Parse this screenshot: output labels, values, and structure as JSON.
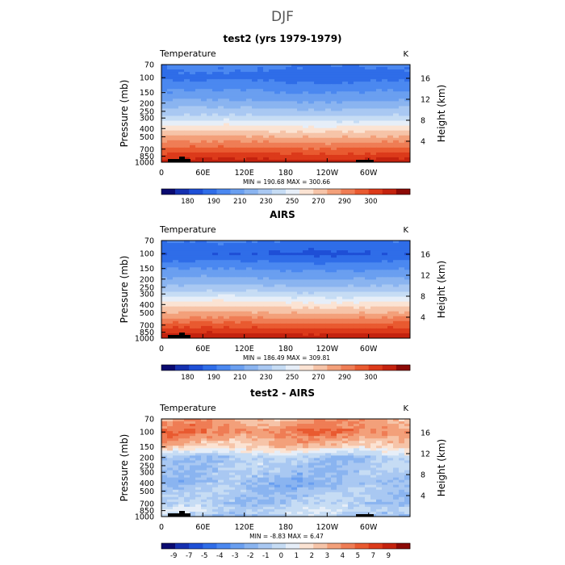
{
  "figure": {
    "title": "DJF"
  },
  "chart_data": [
    {
      "type": "heatmap",
      "title": "test2 (yrs 1979-1979)",
      "variable": "Temperature",
      "units": "K",
      "ylabel": "Pressure (mb)",
      "ylabel_right": "Height (km)",
      "x_ticks": [
        "0",
        "60E",
        "120E",
        "180",
        "120W",
        "60W"
      ],
      "x_tick_values": [
        0,
        60,
        120,
        180,
        240,
        300
      ],
      "xlim": [
        0,
        360
      ],
      "y_ticks": [
        "70",
        "100",
        "150",
        "200",
        "250",
        "300",
        "400",
        "500",
        "700",
        "850",
        "1000"
      ],
      "y_tick_values": [
        70,
        100,
        150,
        200,
        250,
        300,
        400,
        500,
        700,
        850,
        1000
      ],
      "ylim": [
        1000,
        70
      ],
      "y_scale": "log",
      "y2_ticks": [
        "4",
        "8",
        "12",
        "16"
      ],
      "y2_tick_values": [
        4,
        8,
        12,
        16
      ],
      "stats_text": "MIN = 190.68   MAX = 300.66",
      "min": 190.68,
      "max": 300.66,
      "colorbar": {
        "labels": [
          "180",
          "190",
          "210",
          "230",
          "250",
          "270",
          "290",
          "300"
        ],
        "colors": [
          "#0a0a70",
          "#1530b0",
          "#1e4fd6",
          "#2f6de8",
          "#4b88f0",
          "#6a9ff0",
          "#8ab4f0",
          "#a9c8f2",
          "#c6dcf4",
          "#e6eef8",
          "#fbe3d3",
          "#f6c4a8",
          "#f3a07a",
          "#ef7d55",
          "#e95a30",
          "#dc3a1a",
          "#c4220e",
          "#8c0a06"
        ]
      },
      "profile": [
        {
          "p": 70,
          "v": 205
        },
        {
          "p": 100,
          "v": 201
        },
        {
          "p": 150,
          "v": 212
        },
        {
          "p": 200,
          "v": 220
        },
        {
          "p": 250,
          "v": 228
        },
        {
          "p": 300,
          "v": 236
        },
        {
          "p": 400,
          "v": 251
        },
        {
          "p": 500,
          "v": 262
        },
        {
          "p": 700,
          "v": 278
        },
        {
          "p": 850,
          "v": 287
        },
        {
          "p": 1000,
          "v": 294
        }
      ]
    },
    {
      "type": "heatmap",
      "title": "AIRS",
      "variable": "Temperature",
      "units": "K",
      "ylabel": "Pressure (mb)",
      "ylabel_right": "Height (km)",
      "x_ticks": [
        "0",
        "60E",
        "120E",
        "180",
        "120W",
        "60W"
      ],
      "x_tick_values": [
        0,
        60,
        120,
        180,
        240,
        300
      ],
      "xlim": [
        0,
        360
      ],
      "y_ticks": [
        "70",
        "100",
        "150",
        "200",
        "250",
        "300",
        "400",
        "500",
        "700",
        "850",
        "1000"
      ],
      "y_tick_values": [
        70,
        100,
        150,
        200,
        250,
        300,
        400,
        500,
        700,
        850,
        1000
      ],
      "ylim": [
        1000,
        70
      ],
      "y_scale": "log",
      "y2_ticks": [
        "4",
        "8",
        "12",
        "16"
      ],
      "y2_tick_values": [
        4,
        8,
        12,
        16
      ],
      "stats_text": "MIN = 186.49   MAX = 309.81",
      "min": 186.49,
      "max": 309.81,
      "colorbar": {
        "labels": [
          "180",
          "190",
          "210",
          "230",
          "250",
          "270",
          "290",
          "300"
        ],
        "colors": [
          "#0a0a70",
          "#1530b0",
          "#1e4fd6",
          "#2f6de8",
          "#4b88f0",
          "#6a9ff0",
          "#8ab4f0",
          "#a9c8f2",
          "#c6dcf4",
          "#e6eef8",
          "#fbe3d3",
          "#f6c4a8",
          "#f3a07a",
          "#ef7d55",
          "#e95a30",
          "#dc3a1a",
          "#c4220e",
          "#8c0a06"
        ]
      },
      "profile": [
        {
          "p": 70,
          "v": 204
        },
        {
          "p": 100,
          "v": 196
        },
        {
          "p": 150,
          "v": 210
        },
        {
          "p": 200,
          "v": 219
        },
        {
          "p": 250,
          "v": 227
        },
        {
          "p": 300,
          "v": 236
        },
        {
          "p": 400,
          "v": 251
        },
        {
          "p": 500,
          "v": 262
        },
        {
          "p": 700,
          "v": 279
        },
        {
          "p": 850,
          "v": 289
        },
        {
          "p": 1000,
          "v": 297
        }
      ]
    },
    {
      "type": "heatmap",
      "title": "test2 - AIRS",
      "variable": "Temperature",
      "units": "K",
      "ylabel": "Pressure (mb)",
      "ylabel_right": "Height (km)",
      "x_ticks": [
        "0",
        "60E",
        "120E",
        "180",
        "120W",
        "60W"
      ],
      "x_tick_values": [
        0,
        60,
        120,
        180,
        240,
        300
      ],
      "xlim": [
        0,
        360
      ],
      "y_ticks": [
        "70",
        "100",
        "150",
        "200",
        "250",
        "300",
        "400",
        "500",
        "700",
        "850",
        "1000"
      ],
      "y_tick_values": [
        70,
        100,
        150,
        200,
        250,
        300,
        400,
        500,
        700,
        850,
        1000
      ],
      "ylim": [
        1000,
        70
      ],
      "y_scale": "log",
      "y2_ticks": [
        "4",
        "8",
        "12",
        "16"
      ],
      "y2_tick_values": [
        4,
        8,
        12,
        16
      ],
      "stats_text": "MIN =  -8.83   MAX =    6.47",
      "min": -8.83,
      "max": 6.47,
      "colorbar": {
        "labels": [
          "-9",
          "-7",
          "-5",
          "-4",
          "-3",
          "-2",
          "-1",
          "0",
          "1",
          "2",
          "3",
          "4",
          "5",
          "7",
          "9"
        ],
        "colors": [
          "#0a0a70",
          "#1530b0",
          "#1e4fd6",
          "#2f6de8",
          "#4b88f0",
          "#6a9ff0",
          "#8ab4f0",
          "#a9c8f2",
          "#c6dcf4",
          "#e6eef8",
          "#fbe3d3",
          "#f6c4a8",
          "#f3a07a",
          "#ef7d55",
          "#e95a30",
          "#dc3a1a",
          "#c4220e",
          "#8c0a06"
        ]
      },
      "profile": [
        {
          "p": 70,
          "v": 3.5
        },
        {
          "p": 100,
          "v": 5.0
        },
        {
          "p": 150,
          "v": 2.5
        },
        {
          "p": 200,
          "v": -1.5
        },
        {
          "p": 250,
          "v": -1.5
        },
        {
          "p": 300,
          "v": -1.8
        },
        {
          "p": 400,
          "v": -2.5
        },
        {
          "p": 500,
          "v": -1.8
        },
        {
          "p": 700,
          "v": -1.5
        },
        {
          "p": 850,
          "v": -0.5
        },
        {
          "p": 1000,
          "v": -1.5
        }
      ]
    }
  ]
}
